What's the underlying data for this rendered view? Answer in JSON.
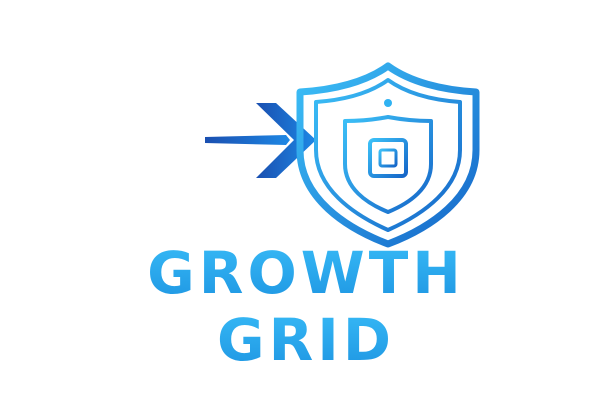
{
  "logo": {
    "name_line_1": "GROWTH",
    "name_line_2": "GRID",
    "icon": "shield-grid-arrow-icon"
  },
  "colors": {
    "shield_light": "#2fb2f2",
    "shield_dark": "#1565c8",
    "arrow": "#1a6fd2",
    "text": "#21a7ec",
    "background": "#ffffff"
  }
}
